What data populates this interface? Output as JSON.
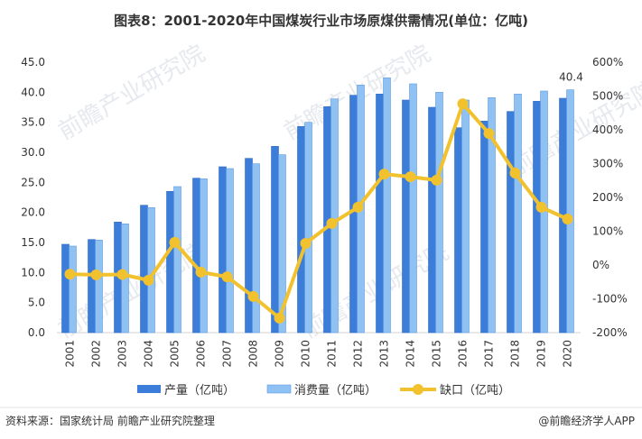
{
  "title": "图表8：2001-2020年中国煤炭行业市场原煤供需情况(单位：亿吨)",
  "footer": {
    "source": "资料来源：国家统计局 前瞻产业研究院整理",
    "brand": "@前瞻经济学人APP"
  },
  "watermark": "前瞻产业研究院",
  "chart_data": {
    "type": "bar",
    "categories": [
      "2001",
      "2002",
      "2003",
      "2004",
      "2005",
      "2006",
      "2007",
      "2008",
      "2009",
      "2010",
      "2011",
      "2012",
      "2013",
      "2014",
      "2015",
      "2016",
      "2017",
      "2018",
      "2019",
      "2020"
    ],
    "series": [
      {
        "name": "产量（亿吨）",
        "type": "bar",
        "axis": "left",
        "color": "#3b7dd8",
        "values": [
          14.7,
          15.5,
          18.4,
          21.2,
          23.5,
          25.7,
          27.6,
          29.0,
          31.0,
          34.3,
          37.6,
          39.5,
          39.7,
          38.7,
          37.5,
          34.1,
          35.2,
          36.8,
          38.5,
          39.0
        ]
      },
      {
        "name": "消费量（亿吨）",
        "type": "bar",
        "axis": "left",
        "color": "#8fc1f3",
        "values": [
          14.4,
          15.4,
          18.1,
          20.8,
          24.3,
          25.6,
          27.3,
          28.1,
          29.6,
          35.0,
          38.9,
          41.2,
          42.4,
          41.4,
          40.0,
          38.7,
          39.1,
          39.7,
          40.2,
          40.4
        ]
      },
      {
        "name": "缺口（亿吨）",
        "type": "line",
        "axis": "right",
        "color": "#f2c12e",
        "values": [
          -27,
          -29,
          -28,
          -45,
          67,
          -21,
          -35,
          -93,
          -157,
          64,
          123,
          171,
          269,
          261,
          251,
          477,
          389,
          272,
          171,
          136
        ]
      }
    ],
    "data_labels": [
      {
        "series": 1,
        "index": 19,
        "text": "40.4"
      }
    ],
    "left_axis": {
      "ylim": [
        0,
        45
      ],
      "ticks": [
        "0.0",
        "5.0",
        "10.0",
        "15.0",
        "20.0",
        "25.0",
        "30.0",
        "35.0",
        "40.0",
        "45.0"
      ]
    },
    "right_axis": {
      "ylim": [
        -200,
        600
      ],
      "ticks": [
        "-200%",
        "-100%",
        "0%",
        "100%",
        "200%",
        "300%",
        "400%",
        "500%",
        "600%"
      ]
    },
    "grid": false,
    "legend_position": "bottom"
  }
}
